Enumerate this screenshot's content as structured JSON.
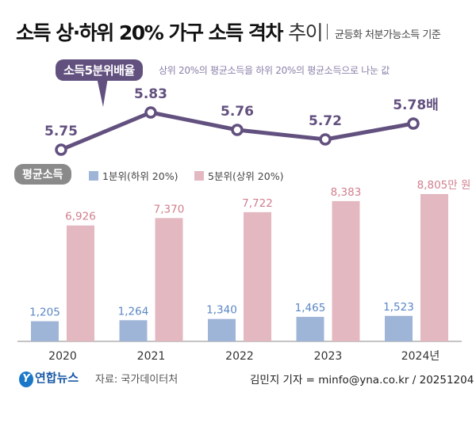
{
  "title": {
    "main": "소득 상·하위 20% 가구 소득 격차",
    "suffix": "추이",
    "subtitle": "균등화 처분가능소득 기준"
  },
  "ratio_tag": "소득5분위배율",
  "ratio_note": "상위 20%의 평균소득을 하위 20%의 평균소득으로 나눈 값",
  "avg_tag": "평균소득",
  "footer": {
    "logo": "연합뉴스",
    "source": "자료: 국가데이터처",
    "credit": "김민지 기자 = minfo@yna.co.kr / 20251204"
  },
  "chart_data": [
    {
      "type": "line",
      "categories": [
        "2020",
        "2021",
        "2022",
        "2023",
        "2024"
      ],
      "values": [
        5.75,
        5.83,
        5.76,
        5.72,
        5.78
      ],
      "data_labels": [
        "5.75",
        "5.83",
        "5.76",
        "5.72",
        "5.78배"
      ],
      "color": "#62507f"
    },
    {
      "type": "bar",
      "categories": [
        "2020",
        "2021",
        "2022",
        "2023",
        "2024"
      ],
      "tick_labels": [
        "2020",
        "2021",
        "2022",
        "2023",
        "2024년"
      ],
      "series": [
        {
          "name": "1분위(하위 20%)",
          "values": [
            1205,
            1264,
            1340,
            1465,
            1523
          ],
          "labels": [
            "1,205",
            "1,264",
            "1,340",
            "1,465",
            "1,523"
          ],
          "color": "#9fb5d8",
          "label_color": "#5b86c4"
        },
        {
          "name": "5분위(상위 20%)",
          "values": [
            6926,
            7370,
            7722,
            8383,
            8805
          ],
          "labels": [
            "6,926",
            "7,370",
            "7,722",
            "8,383",
            "8,805만 원"
          ],
          "color": "#e4b8c0",
          "label_color": "#d07f8e"
        }
      ],
      "unit": "만 원"
    }
  ]
}
